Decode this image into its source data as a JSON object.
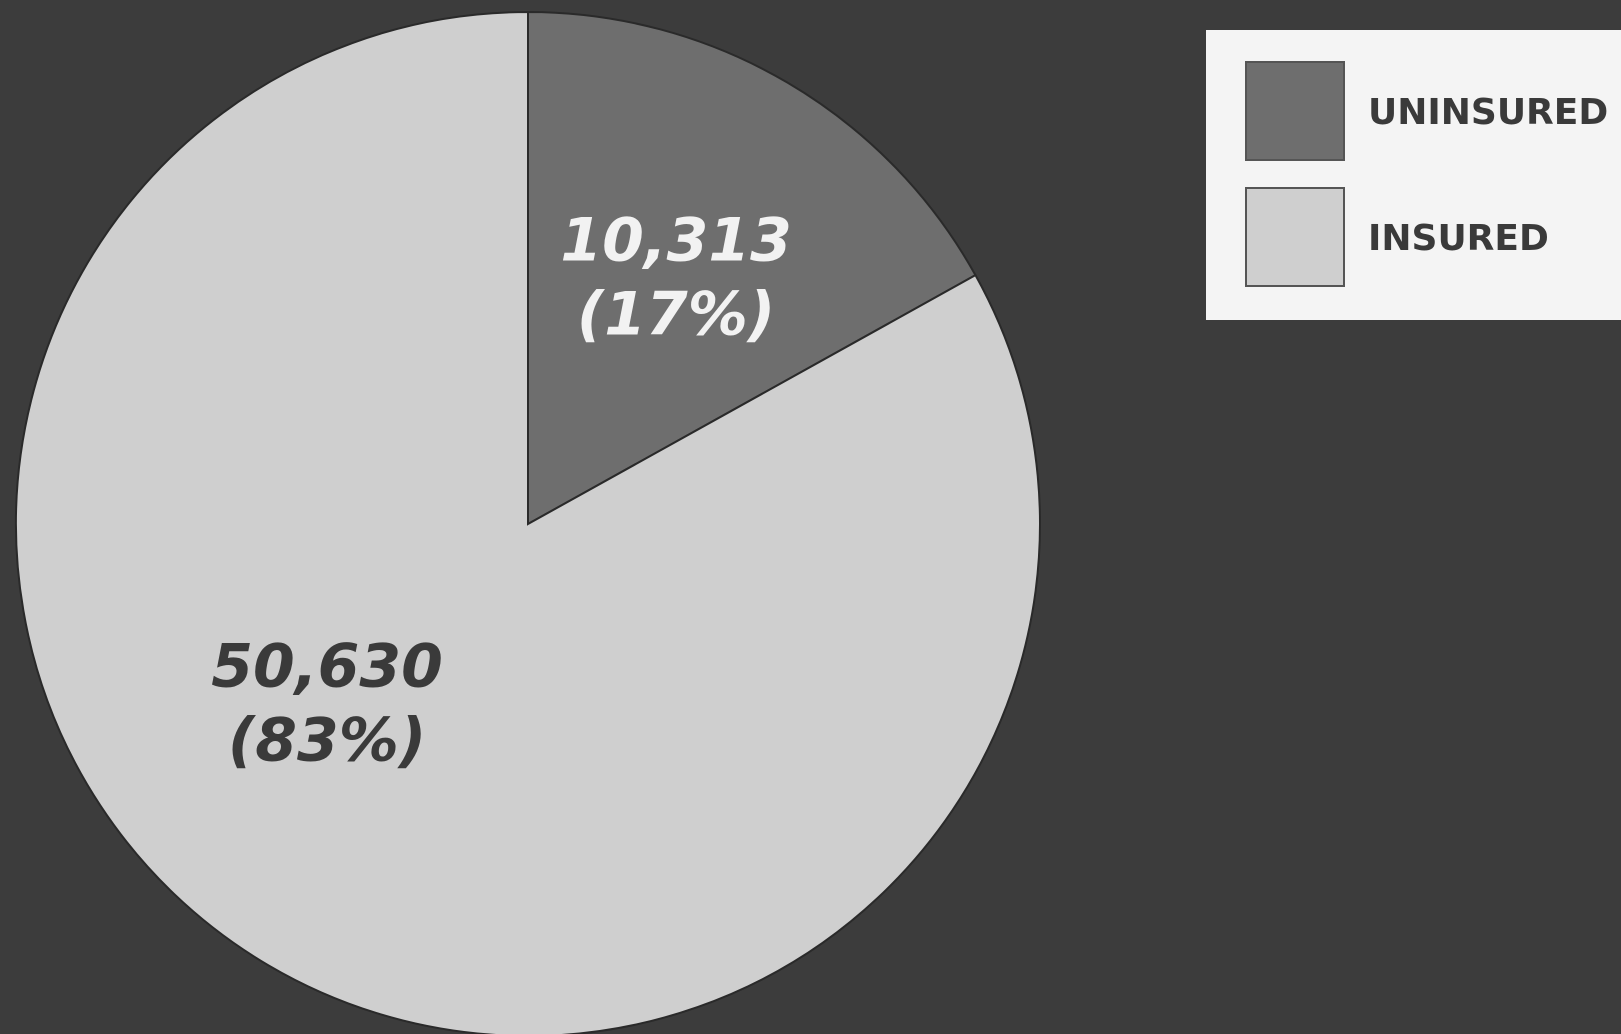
{
  "chart_data": {
    "type": "pie",
    "slices": [
      {
        "label": "UNINSURED",
        "value": 10313,
        "display_value": "10,313",
        "display_percent": "(17%)",
        "color": "#6e6e6e",
        "text_color": "#f2f2f2"
      },
      {
        "label": "INSURED",
        "value": 50630,
        "display_value": "50,630",
        "display_percent": "(83%)",
        "color": "#cfcfcf",
        "text_color": "#3a3a3a"
      }
    ],
    "start_angle_deg": 0,
    "direction": "clockwise",
    "legend": {
      "position": "top-right",
      "entries": [
        "UNINSURED",
        "INSURED"
      ]
    }
  },
  "colors": {
    "background": "#3c3c3c",
    "legend_background": "#f4f4f4",
    "legend_text": "#3a3a3a"
  }
}
